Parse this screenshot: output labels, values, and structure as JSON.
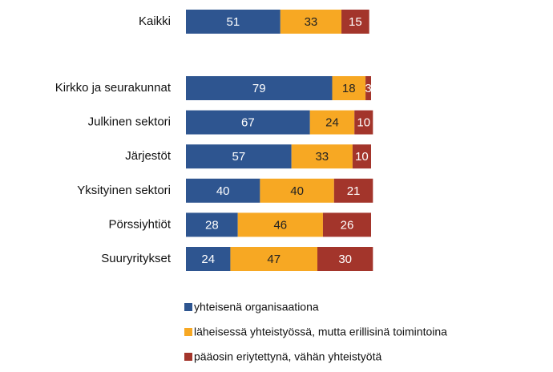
{
  "chart_data": {
    "type": "stacked-bar-horizontal",
    "categories": [
      "Kaikki",
      "Kirkko ja seurakunnat",
      "Julkinen sektori",
      "Järjestöt",
      "Yksityinen sektori",
      "Pörssiyhtiöt",
      "Suuryritykset"
    ],
    "series": [
      {
        "name": "yhteisenä organisaationa",
        "color": "#2e5590",
        "values": [
          51,
          79,
          67,
          57,
          40,
          28,
          24
        ]
      },
      {
        "name": "läheisessä yhteistyössä, mutta erillisinä toimintoina",
        "color": "#f7a823",
        "values": [
          33,
          18,
          24,
          33,
          40,
          46,
          47
        ]
      },
      {
        "name": "pääosin eriytettynä, vähän yhteistyötä",
        "color": "#a3352b",
        "values": [
          15,
          3,
          10,
          10,
          21,
          26,
          30
        ]
      }
    ],
    "xlim": [
      0,
      100
    ]
  }
}
